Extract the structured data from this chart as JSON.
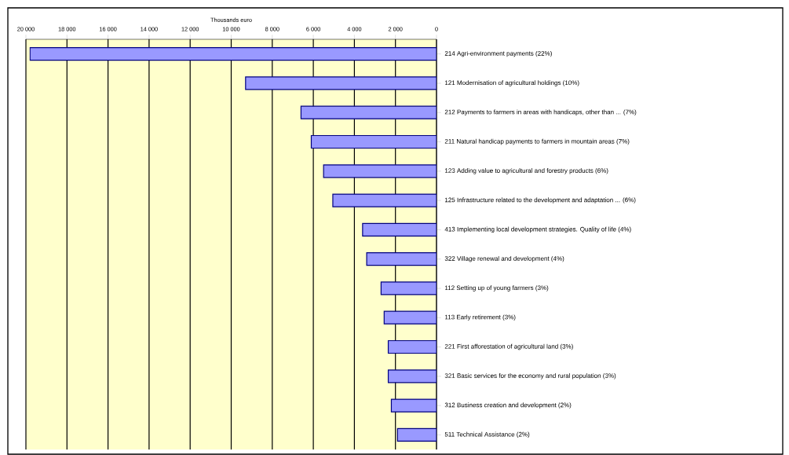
{
  "chart_data": {
    "type": "bar",
    "orientation": "horizontal",
    "xlabel": "Thousands euro",
    "categories": [
      "214 Agri-environment payments (22%)",
      "121 Modernisation of agricultural holdings (10%)",
      "212 Payments to farmers in areas with handicaps, other than ... (7%)",
      "211 Natural handicap payments to farmers in mountain areas (7%)",
      "123 Adding value to agricultural and forestry products (6%)",
      "125 Infrastructure related to the development and adaptation ... (6%)",
      "413 Implementing local development strategies. Quality of life (4%)",
      "322 Village renewal and development (4%)",
      "112 Setting up of young farmers (3%)",
      "113 Early retirement (3%)",
      "221 First afforestation of agricultural land (3%)",
      "321 Basic services for the economy and rural population (3%)",
      "312 Business creation and development (2%)",
      "511 Technical Assistance (2%)"
    ],
    "values": [
      19800,
      9300,
      6600,
      6100,
      5500,
      5050,
      3600,
      3400,
      2700,
      2550,
      2350,
      2350,
      2200,
      1900
    ],
    "color": "#9999ff",
    "xlim": [
      20000,
      0
    ],
    "xticks": [
      {
        "value": 20000,
        "label": "20 000"
      },
      {
        "value": 18000,
        "label": "18 000"
      },
      {
        "value": 16000,
        "label": "16 000"
      },
      {
        "value": 14000,
        "label": "14 000"
      },
      {
        "value": 12000,
        "label": "12 000"
      },
      {
        "value": 10000,
        "label": "10 000"
      },
      {
        "value": 8000,
        "label": "8 000"
      },
      {
        "value": 6000,
        "label": "6 000"
      },
      {
        "value": 4000,
        "label": "4 000"
      },
      {
        "value": 2000,
        "label": "2 000"
      },
      0
    ],
    "grid": "x"
  }
}
